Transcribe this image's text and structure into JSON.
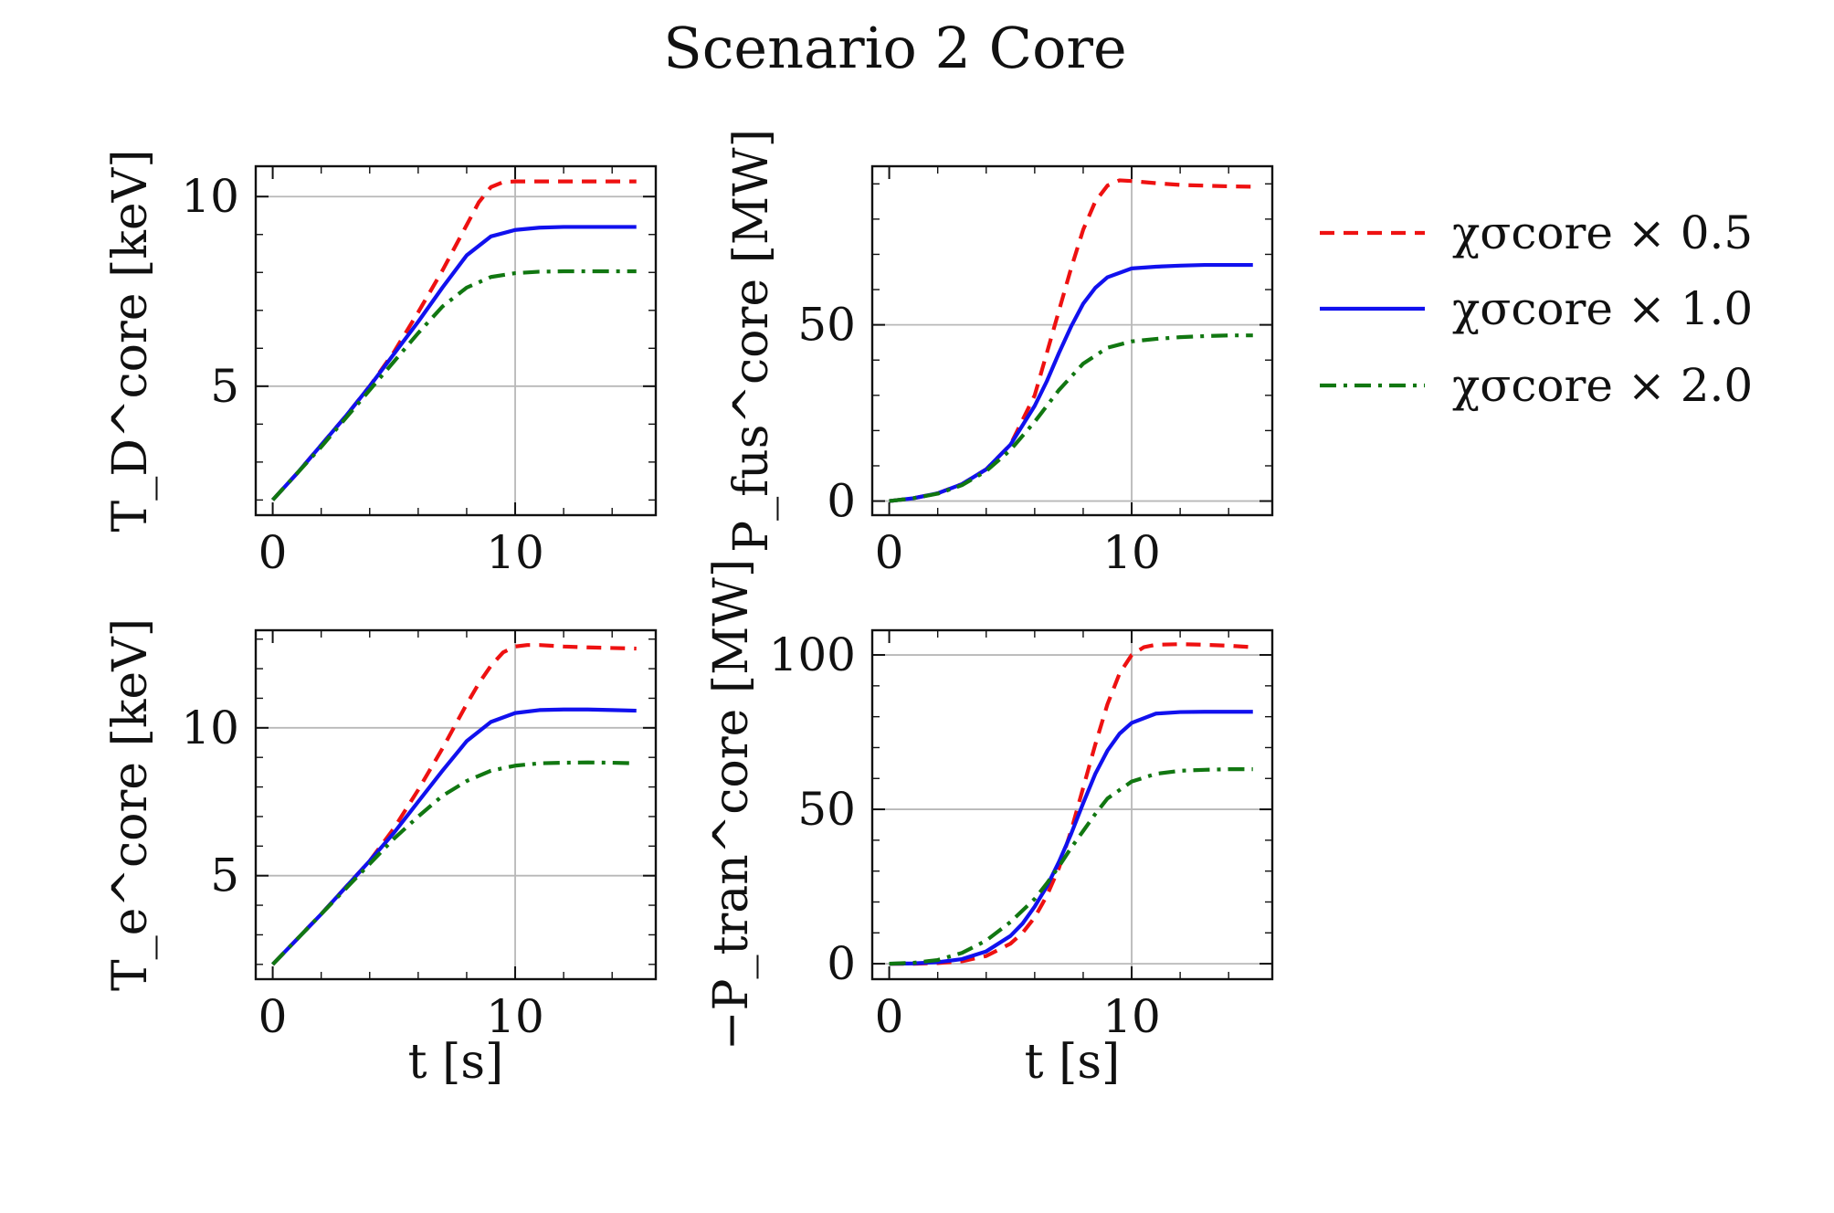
{
  "page": {
    "title": "Scenario 2 Core"
  },
  "style": {
    "colors": {
      "red": "#ee1111",
      "blue": "#1111ee",
      "green": "#117711"
    }
  },
  "legend": {
    "items": [
      {
        "label": "χσcore × 0.5",
        "color": "#ee1111",
        "dash": "dashed"
      },
      {
        "label": "χσcore × 1.0",
        "color": "#1111ee",
        "dash": "solid"
      },
      {
        "label": "χσcore × 2.0",
        "color": "#117711",
        "dash": "dashdot"
      }
    ]
  },
  "chart_data": [
    {
      "type": "line",
      "title": "",
      "xlabel": "",
      "ylabel": "T_D^core [keV]",
      "xlim": [
        -0.7,
        15.8
      ],
      "ylim": [
        1.6,
        10.8
      ],
      "xticks": [
        0,
        10
      ],
      "yticks": [
        5,
        10
      ],
      "ygrid": [
        5,
        10
      ],
      "xgrid": [
        10
      ],
      "show_x_tick_labels": true,
      "series": [
        {
          "name": "χσcore × 0.5",
          "color": "#ee1111",
          "dash": "dashed",
          "x": [
            0,
            1,
            2,
            3,
            4,
            5,
            6,
            7,
            8,
            8.5,
            9,
            9.5,
            10,
            11,
            12,
            13,
            14,
            15
          ],
          "y": [
            2.0,
            2.7,
            3.45,
            4.2,
            5.0,
            5.9,
            6.95,
            8.05,
            9.25,
            9.85,
            10.25,
            10.38,
            10.4,
            10.4,
            10.4,
            10.4,
            10.4,
            10.4
          ]
        },
        {
          "name": "χσcore × 1.0",
          "color": "#1111ee",
          "dash": "solid",
          "x": [
            0,
            1,
            2,
            3,
            4,
            5,
            6,
            7,
            8,
            9,
            10,
            11,
            12,
            13,
            14,
            15
          ],
          "y": [
            2.0,
            2.7,
            3.45,
            4.2,
            5.0,
            5.85,
            6.7,
            7.6,
            8.45,
            8.95,
            9.12,
            9.18,
            9.2,
            9.2,
            9.2,
            9.2
          ]
        },
        {
          "name": "χσcore × 2.0",
          "color": "#117711",
          "dash": "dashdot",
          "x": [
            0,
            1,
            2,
            3,
            4,
            5,
            6,
            7,
            8,
            9,
            10,
            11,
            12,
            13,
            14,
            15
          ],
          "y": [
            2.0,
            2.7,
            3.4,
            4.15,
            4.9,
            5.65,
            6.4,
            7.1,
            7.6,
            7.88,
            7.98,
            8.02,
            8.03,
            8.03,
            8.03,
            8.03
          ]
        }
      ]
    },
    {
      "type": "line",
      "title": "",
      "xlabel": "",
      "ylabel": "P_fus^core [MW]",
      "xlim": [
        -0.7,
        15.8
      ],
      "ylim": [
        -4,
        95
      ],
      "xticks": [
        0,
        10
      ],
      "yticks": [
        0,
        50
      ],
      "ygrid": [
        0,
        50
      ],
      "xgrid": [
        10
      ],
      "show_x_tick_labels": true,
      "series": [
        {
          "name": "χσcore × 0.5",
          "color": "#ee1111",
          "dash": "dashed",
          "x": [
            0,
            1,
            2,
            3,
            4,
            5,
            6,
            6.5,
            7,
            7.5,
            8,
            8.5,
            9,
            9.5,
            10,
            11,
            12,
            13,
            14,
            15
          ],
          "y": [
            0,
            0.8,
            2.2,
            4.8,
            9,
            16,
            30,
            42,
            54,
            66,
            77,
            85,
            89.5,
            91,
            90.8,
            90.2,
            89.7,
            89.5,
            89.3,
            89.2
          ]
        },
        {
          "name": "χσcore × 1.0",
          "color": "#1111ee",
          "dash": "solid",
          "x": [
            0,
            1,
            2,
            3,
            4,
            5,
            6,
            6.5,
            7,
            7.5,
            8,
            8.5,
            9,
            10,
            11,
            12,
            13,
            14,
            15
          ],
          "y": [
            0,
            0.8,
            2.2,
            4.8,
            9,
            16,
            27,
            34,
            42,
            49.5,
            56,
            60.5,
            63.5,
            66,
            66.5,
            66.8,
            67,
            67,
            67
          ]
        },
        {
          "name": "χσcore × 2.0",
          "color": "#117711",
          "dash": "dashdot",
          "x": [
            0,
            1,
            2,
            3,
            4,
            5,
            6,
            7,
            8,
            9,
            10,
            11,
            12,
            13,
            14,
            15
          ],
          "y": [
            0,
            0.8,
            2.1,
            4.5,
            8.5,
            14.5,
            22.5,
            31.5,
            39,
            43.5,
            45.3,
            46,
            46.5,
            46.8,
            47,
            47
          ]
        }
      ]
    },
    {
      "type": "line",
      "title": "",
      "xlabel": "t [s]",
      "ylabel": "T_e^core [keV]",
      "xlim": [
        -0.7,
        15.8
      ],
      "ylim": [
        1.5,
        13.3
      ],
      "xticks": [
        0,
        10
      ],
      "yticks": [
        5,
        10
      ],
      "ygrid": [
        5,
        10
      ],
      "xgrid": [
        10
      ],
      "show_x_tick_labels": true,
      "series": [
        {
          "name": "χσcore × 0.5",
          "color": "#ee1111",
          "dash": "dashed",
          "x": [
            0,
            1,
            2,
            3,
            4,
            5,
            6,
            7,
            8,
            8.5,
            9,
            9.5,
            10,
            10.5,
            11,
            12,
            13,
            14,
            15
          ],
          "y": [
            2.0,
            2.85,
            3.7,
            4.6,
            5.5,
            6.6,
            7.9,
            9.3,
            10.8,
            11.5,
            12.1,
            12.55,
            12.75,
            12.8,
            12.8,
            12.75,
            12.72,
            12.7,
            12.68
          ]
        },
        {
          "name": "χσcore × 1.0",
          "color": "#1111ee",
          "dash": "solid",
          "x": [
            0,
            1,
            2,
            3,
            4,
            5,
            6,
            7,
            8,
            9,
            10,
            11,
            12,
            13,
            14,
            15
          ],
          "y": [
            2.0,
            2.85,
            3.7,
            4.6,
            5.5,
            6.45,
            7.5,
            8.55,
            9.55,
            10.2,
            10.5,
            10.6,
            10.62,
            10.62,
            10.6,
            10.58
          ]
        },
        {
          "name": "χσcore × 2.0",
          "color": "#117711",
          "dash": "dashdot",
          "x": [
            0,
            1,
            2,
            3,
            4,
            5,
            6,
            7,
            8,
            9,
            10,
            11,
            12,
            13,
            14,
            15
          ],
          "y": [
            2.0,
            2.85,
            3.7,
            4.55,
            5.4,
            6.25,
            7.0,
            7.7,
            8.2,
            8.55,
            8.72,
            8.8,
            8.82,
            8.83,
            8.82,
            8.8
          ]
        }
      ]
    },
    {
      "type": "line",
      "title": "",
      "xlabel": "t [s]",
      "ylabel": "−P_tran^core [MW]",
      "xlim": [
        -0.7,
        15.8
      ],
      "ylim": [
        -5,
        108
      ],
      "xticks": [
        0,
        10
      ],
      "yticks": [
        0,
        50,
        100
      ],
      "ygrid": [
        0,
        50,
        100
      ],
      "xgrid": [
        10
      ],
      "show_x_tick_labels": true,
      "series": [
        {
          "name": "χσcore × 0.5",
          "color": "#ee1111",
          "dash": "dashed",
          "x": [
            0,
            1,
            2,
            3,
            4,
            5,
            5.5,
            6,
            6.5,
            7,
            7.5,
            8,
            8.5,
            9,
            9.5,
            10,
            10.5,
            11,
            12,
            13,
            14,
            15
          ],
          "y": [
            0,
            0,
            0.2,
            0.8,
            2.5,
            6.5,
            10,
            15,
            22,
            31,
            43,
            57,
            71,
            84,
            94,
            100,
            102.5,
            103.3,
            103.5,
            103.3,
            103,
            102.5
          ]
        },
        {
          "name": "χσcore × 1.0",
          "color": "#1111ee",
          "dash": "solid",
          "x": [
            0,
            1,
            2,
            3,
            4,
            5,
            5.5,
            6,
            6.5,
            7,
            7.5,
            8,
            8.5,
            9,
            9.5,
            10,
            11,
            12,
            13,
            14,
            15
          ],
          "y": [
            0,
            0.1,
            0.5,
            1.5,
            4,
            9,
            13,
            18.5,
            25,
            33,
            42,
            52,
            61.5,
            69,
            74.5,
            78,
            81,
            81.5,
            81.6,
            81.6,
            81.6
          ]
        },
        {
          "name": "χσcore × 2.0",
          "color": "#117711",
          "dash": "dashdot",
          "x": [
            0,
            1,
            2,
            3,
            4,
            5,
            6,
            6.5,
            7,
            7.5,
            8,
            8.5,
            9,
            10,
            11,
            12,
            13,
            14,
            15
          ],
          "y": [
            0,
            0.3,
            1.2,
            3.5,
            7.5,
            13.5,
            21,
            26,
            31.5,
            37.5,
            43,
            48.5,
            53.5,
            59,
            61.5,
            62.5,
            62.8,
            63,
            63
          ]
        }
      ]
    }
  ]
}
